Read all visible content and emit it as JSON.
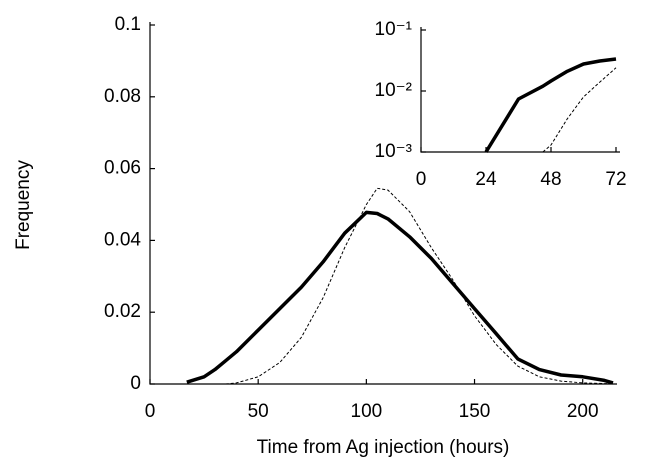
{
  "chart_data": [
    {
      "type": "line",
      "xlabel": "Time from Ag injection (hours)",
      "ylabel": "Frequency",
      "x": [
        17,
        25,
        30,
        35,
        40,
        50,
        60,
        70,
        80,
        90,
        100,
        105,
        110,
        120,
        130,
        140,
        150,
        160,
        170,
        180,
        190,
        200,
        210,
        214
      ],
      "series": [
        {
          "color": "#000000",
          "linestyle": "solid",
          "values": [
            0.0005,
            0.002,
            0.004,
            0.0065,
            0.009,
            0.015,
            0.021,
            0.027,
            0.034,
            0.042,
            0.0478,
            0.0475,
            0.046,
            0.041,
            0.035,
            0.028,
            0.021,
            0.014,
            0.007,
            0.004,
            0.0025,
            0.002,
            0.001,
            0.0003
          ]
        },
        {
          "color": "#000000",
          "linestyle": "dashed",
          "values": [
            null,
            null,
            null,
            0,
            0.0003,
            0.002,
            0.006,
            0.013,
            0.024,
            0.038,
            0.05,
            0.0545,
            0.054,
            0.048,
            0.038,
            0.029,
            0.019,
            0.011,
            0.005,
            0.002,
            0.0008,
            0.0003,
            0.0001,
            0.0001
          ]
        }
      ],
      "xlim": [
        0,
        214
      ],
      "xticks": [
        0,
        50,
        100,
        150,
        200
      ],
      "ylim": [
        0,
        0.1
      ],
      "yticks": [
        0,
        0.02,
        0.04,
        0.06,
        0.08,
        0.1
      ]
    },
    {
      "type": "line",
      "yscale": "log",
      "x": [
        24,
        36,
        45,
        48,
        54,
        60,
        66,
        72
      ],
      "series": [
        {
          "color": "#000000",
          "linestyle": "solid",
          "values": [
            0.001,
            0.0074,
            0.012,
            0.0146,
            0.021,
            0.0277,
            0.031,
            0.0335
          ]
        },
        {
          "color": "#000000",
          "linestyle": "dashed",
          "values": [
            null,
            null,
            0.001,
            0.0013,
            0.0035,
            0.008,
            0.014,
            0.024
          ]
        }
      ],
      "xlim": [
        0,
        72
      ],
      "xticks": [
        0,
        24,
        48,
        72
      ],
      "ylim": [
        0.001,
        0.1
      ],
      "yticks": [
        {
          "value": 0.001,
          "label": "10⁻³"
        },
        {
          "value": 0.01,
          "label": "10⁻²"
        },
        {
          "value": 0.1,
          "label": "10⁻¹"
        }
      ]
    }
  ]
}
